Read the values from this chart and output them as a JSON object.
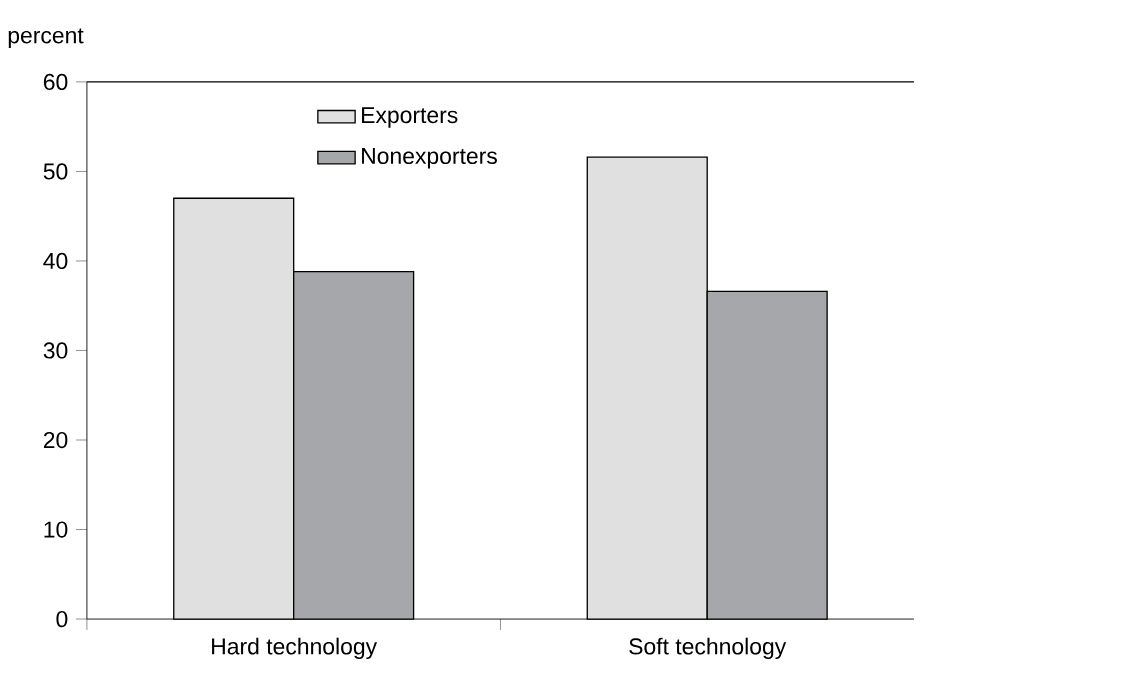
{
  "chart_data": {
    "type": "bar",
    "ylabel": "percent",
    "categories": [
      "Hard technology",
      "Soft technology"
    ],
    "series": [
      {
        "name": "Exporters",
        "color": "#e0e0e0",
        "values": [
          47,
          51.6
        ]
      },
      {
        "name": "Nonexporters",
        "color": "#a6a7ab",
        "values": [
          38.8,
          36.6
        ]
      }
    ],
    "ylim": [
      0,
      60
    ],
    "yticks": [
      0,
      10,
      20,
      30,
      40,
      50,
      60
    ],
    "grid": false,
    "legend": "top"
  }
}
